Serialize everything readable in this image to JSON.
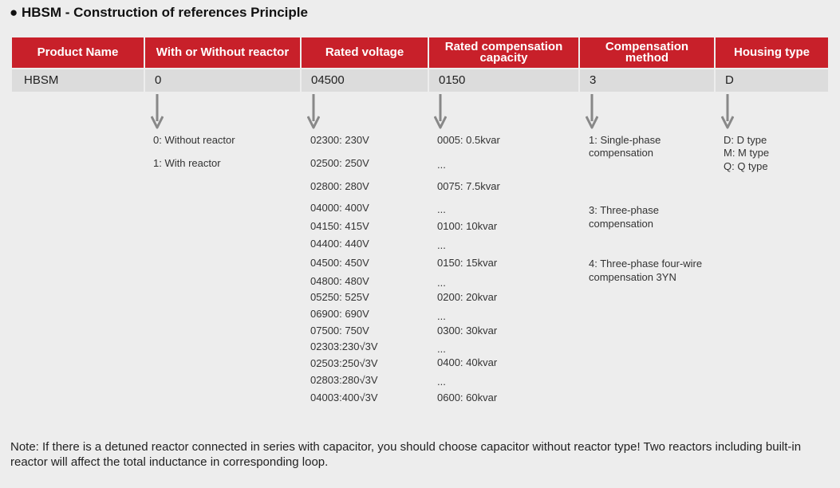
{
  "title": "● HBSM - Construction of references Principle",
  "columns": [
    {
      "header": "Product Name",
      "value": "HBSM",
      "items": []
    },
    {
      "header": "With or Without reactor",
      "value": "0",
      "items": [
        "0: Without reactor",
        "1: With reactor"
      ]
    },
    {
      "header": "Rated voltage",
      "value": "04500",
      "items": [
        "02300: 230V",
        "02500: 250V",
        "02800: 280V",
        "04000: 400V",
        "04150: 415V",
        "04400: 440V",
        "04500: 450V",
        "04800: 480V",
        "05250: 525V",
        "06900: 690V",
        "07500: 750V",
        "02303:230√3V",
        "02503:250√3V",
        "02803:280√3V",
        "04003:400√3V"
      ]
    },
    {
      "header": "Rated compensation capacity",
      "value": "0150",
      "items": [
        "0005: 0.5kvar",
        "...",
        "0075: 7.5kvar",
        "...",
        "0100: 10kvar",
        "...",
        "0150: 15kvar",
        "...",
        "0200: 20kvar",
        "...",
        "0300: 30kvar",
        "...",
        "0400: 40kvar",
        "...",
        "0600: 60kvar"
      ]
    },
    {
      "header": "Compensation method",
      "value": "3",
      "items": [
        "1: Single-phase",
        "compensation",
        "3: Three-phase",
        "compensation",
        "4: Three-phase four-wire",
        "compensation 3YN"
      ]
    },
    {
      "header": "Housing type",
      "value": "D",
      "items": [
        "D: D type",
        "M: M type",
        "Q: Q type"
      ]
    }
  ],
  "note": "Note: If there is a detuned reactor connected in series with capacitor, you should choose capacitor without reactor type! Two reactors including built-in reactor will affect the total inductance in corresponding loop."
}
